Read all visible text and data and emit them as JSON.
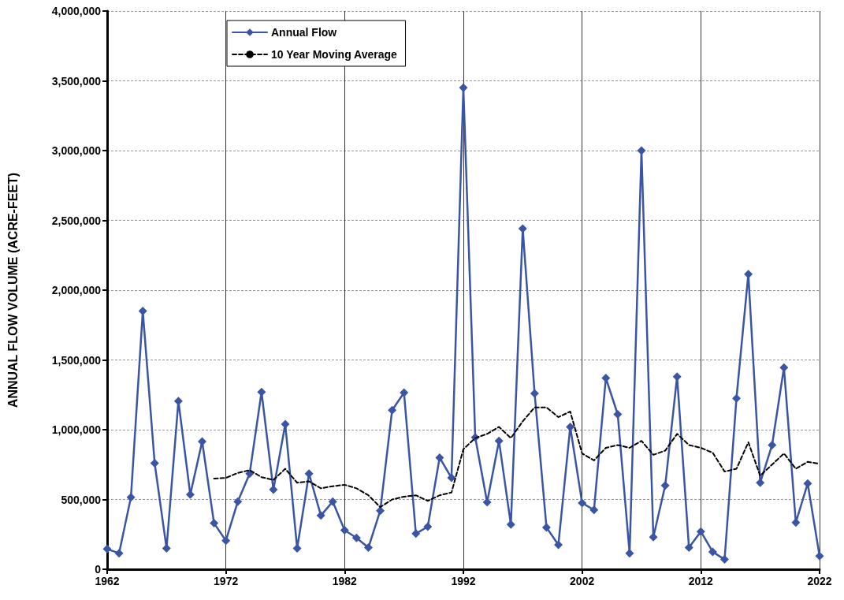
{
  "chart_data": {
    "type": "line",
    "ylabel": "ANNUAL FLOW VOLUME (ACRE-FEET)",
    "xlim": [
      1962,
      2022
    ],
    "xticks": [
      1962,
      1972,
      1982,
      1992,
      2002,
      2012,
      2022
    ],
    "ylim": [
      0,
      4000000
    ],
    "yticks": [
      0,
      {
        "value": 500000,
        "label": "500,000"
      },
      {
        "value": 1000000,
        "label": "1,000,000"
      },
      {
        "value": 1500000,
        "label": "1,500,000"
      },
      {
        "value": 2000000,
        "label": "2,000,000"
      },
      {
        "value": 2500000,
        "label": "2,500,000"
      },
      {
        "value": 3000000,
        "label": "3,000,000"
      },
      {
        "value": 3500000,
        "label": "3,500,000"
      },
      {
        "value": 4000000,
        "label": "4,000,000"
      }
    ],
    "grid": true,
    "legend": "top left",
    "series": [
      {
        "name": "Annual Flow",
        "color": "#3a55a4",
        "marker": "diamond",
        "line_style": "solid",
        "x": [
          1962,
          1963,
          1964,
          1965,
          1966,
          1967,
          1968,
          1969,
          1970,
          1971,
          1972,
          1973,
          1974,
          1975,
          1976,
          1977,
          1978,
          1979,
          1980,
          1981,
          1982,
          1983,
          1984,
          1985,
          1986,
          1987,
          1988,
          1989,
          1990,
          1991,
          1992,
          1993,
          1994,
          1995,
          1996,
          1997,
          1998,
          1999,
          2000,
          2001,
          2002,
          2003,
          2004,
          2005,
          2006,
          2007,
          2008,
          2009,
          2010,
          2011,
          2012,
          2013,
          2014,
          2015,
          2016,
          2017,
          2018,
          2019,
          2020,
          2021,
          2022
        ],
        "values": [
          145000,
          115000,
          515000,
          1850000,
          760000,
          150000,
          1205000,
          535000,
          915000,
          330000,
          205000,
          485000,
          685000,
          1270000,
          570000,
          1040000,
          150000,
          685000,
          385000,
          485000,
          280000,
          225000,
          155000,
          420000,
          1140000,
          1265000,
          255000,
          305000,
          800000,
          655000,
          3450000,
          945000,
          480000,
          920000,
          320000,
          2440000,
          1260000,
          300000,
          175000,
          1020000,
          475000,
          425000,
          1370000,
          1110000,
          115000,
          3000000,
          230000,
          600000,
          1380000,
          155000,
          270000,
          125000,
          70000,
          1225000,
          2115000,
          620000,
          890000,
          1445000,
          335000,
          615000,
          95000
        ]
      },
      {
        "name": "10 Year Moving Average",
        "color": "#000000",
        "marker": "none",
        "line_style": "dashed",
        "x": [
          1971,
          1972,
          1973,
          1974,
          1975,
          1976,
          1977,
          1978,
          1979,
          1980,
          1981,
          1982,
          1983,
          1984,
          1985,
          1986,
          1987,
          1988,
          1989,
          1990,
          1991,
          1992,
          1993,
          1994,
          1995,
          1996,
          1997,
          1998,
          1999,
          2000,
          2001,
          2002,
          2003,
          2004,
          2005,
          2006,
          2007,
          2008,
          2009,
          2010,
          2011,
          2012,
          2013,
          2014,
          2015,
          2016,
          2017,
          2018,
          2019,
          2020,
          2021,
          2022
        ],
        "values": [
          650000,
          655000,
          690000,
          710000,
          660000,
          640000,
          720000,
          620000,
          630000,
          580000,
          595000,
          605000,
          580000,
          530000,
          445000,
          500000,
          520000,
          530000,
          490000,
          530000,
          550000,
          860000,
          940000,
          970000,
          1020000,
          940000,
          1060000,
          1160000,
          1160000,
          1090000,
          1130000,
          830000,
          780000,
          870000,
          890000,
          870000,
          920000,
          820000,
          850000,
          970000,
          890000,
          870000,
          835000,
          700000,
          720000,
          910000,
          670000,
          750000,
          830000,
          720000,
          770000,
          755000
        ]
      }
    ]
  }
}
